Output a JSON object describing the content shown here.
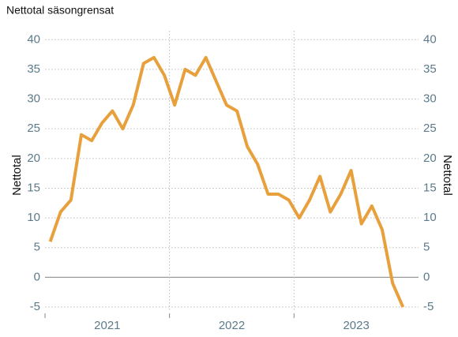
{
  "chart_data": {
    "type": "line",
    "title": "Nettotal säsongrensat",
    "y_label": "Nettotal",
    "y2_label": "Nettotal",
    "year_labels": [
      "2021",
      "2022",
      "2023"
    ],
    "series": [
      {
        "name": "Nettotal",
        "color": "#e8a03c",
        "values": [
          6,
          11,
          13,
          24,
          23,
          26,
          28,
          25,
          29,
          36,
          37,
          34,
          29,
          35,
          34,
          37,
          33,
          29,
          28,
          22,
          19,
          14,
          14,
          13,
          10,
          13,
          17,
          11,
          14,
          18,
          9,
          12,
          8,
          -1,
          -5
        ]
      }
    ],
    "ylim": [
      -5.8,
      41.5
    ],
    "yticks": [
      -5,
      0,
      5,
      10,
      15,
      20,
      25,
      30,
      35,
      40
    ],
    "y2lim": [
      -5.8,
      41.5
    ],
    "y2ticks": [
      -5,
      0,
      5,
      10,
      15,
      20,
      25,
      30,
      35,
      40
    ],
    "grid": true
  }
}
